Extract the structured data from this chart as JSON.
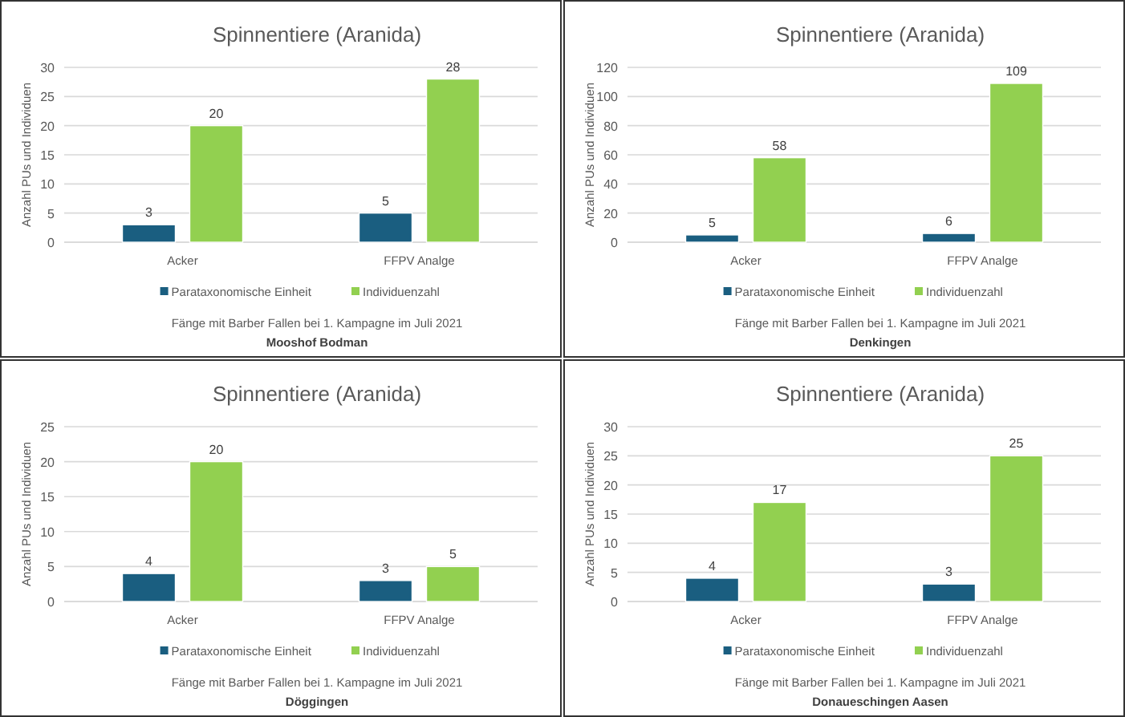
{
  "chart_data": [
    {
      "type": "bar",
      "title": "Spinnentiere (Aranida)",
      "ylabel": "Anzahl PUs und Individuen",
      "categories": [
        "Acker",
        "FFPV Analge"
      ],
      "series": [
        {
          "name": "Parataxonomische Einheit",
          "color": "#1a5e80",
          "values": [
            3,
            5
          ]
        },
        {
          "name": "Individuenzahl",
          "color": "#92d050",
          "values": [
            20,
            28
          ]
        }
      ],
      "ylim": [
        0,
        30
      ],
      "yticks": [
        0,
        5,
        10,
        15,
        20,
        25,
        30
      ],
      "grid": "y",
      "legend": "bottom",
      "data_labels": true,
      "annotations": [
        "Fänge mit Barber Fallen bei 1. Kampagne im Juli 2021",
        "Mooshof Bodman"
      ]
    },
    {
      "type": "bar",
      "title": "Spinnentiere (Aranida)",
      "ylabel": "Anzahl PUs und Individuen",
      "categories": [
        "Acker",
        "FFPV Analge"
      ],
      "series": [
        {
          "name": "Parataxonomische Einheit",
          "color": "#1a5e80",
          "values": [
            5,
            6
          ]
        },
        {
          "name": "Individuenzahl",
          "color": "#92d050",
          "values": [
            58,
            109
          ]
        }
      ],
      "ylim": [
        0,
        120
      ],
      "yticks": [
        0,
        20,
        40,
        60,
        80,
        100,
        120
      ],
      "grid": "y",
      "legend": "bottom",
      "data_labels": true,
      "annotations": [
        "Fänge mit Barber Fallen bei 1. Kampagne im Juli 2021",
        "Denkingen"
      ]
    },
    {
      "type": "bar",
      "title": "Spinnentiere (Aranida)",
      "ylabel": "Anzahl PUs und Individuen",
      "categories": [
        "Acker",
        "FFPV Analge"
      ],
      "series": [
        {
          "name": "Parataxonomische Einheit",
          "color": "#1a5e80",
          "values": [
            4,
            3
          ]
        },
        {
          "name": "Individuenzahl",
          "color": "#92d050",
          "values": [
            20,
            5
          ]
        }
      ],
      "ylim": [
        0,
        25
      ],
      "yticks": [
        0,
        5,
        10,
        15,
        20,
        25
      ],
      "grid": "y",
      "legend": "bottom",
      "data_labels": true,
      "annotations": [
        "Fänge mit Barber Fallen bei 1. Kampagne im Juli 2021",
        "Döggingen"
      ]
    },
    {
      "type": "bar",
      "title": "Spinnentiere (Aranida)",
      "ylabel": "Anzahl PUs und Individuen",
      "categories": [
        "Acker",
        "FFPV Analge"
      ],
      "series": [
        {
          "name": "Parataxonomische Einheit",
          "color": "#1a5e80",
          "values": [
            4,
            3
          ]
        },
        {
          "name": "Individuenzahl",
          "color": "#92d050",
          "values": [
            17,
            25
          ]
        }
      ],
      "ylim": [
        0,
        30
      ],
      "yticks": [
        0,
        5,
        10,
        15,
        20,
        25,
        30
      ],
      "grid": "y",
      "legend": "bottom",
      "data_labels": true,
      "annotations": [
        "Fänge mit Barber Fallen bei 1. Kampagne im Juli 2021",
        "Donaueschingen Aasen"
      ]
    }
  ]
}
